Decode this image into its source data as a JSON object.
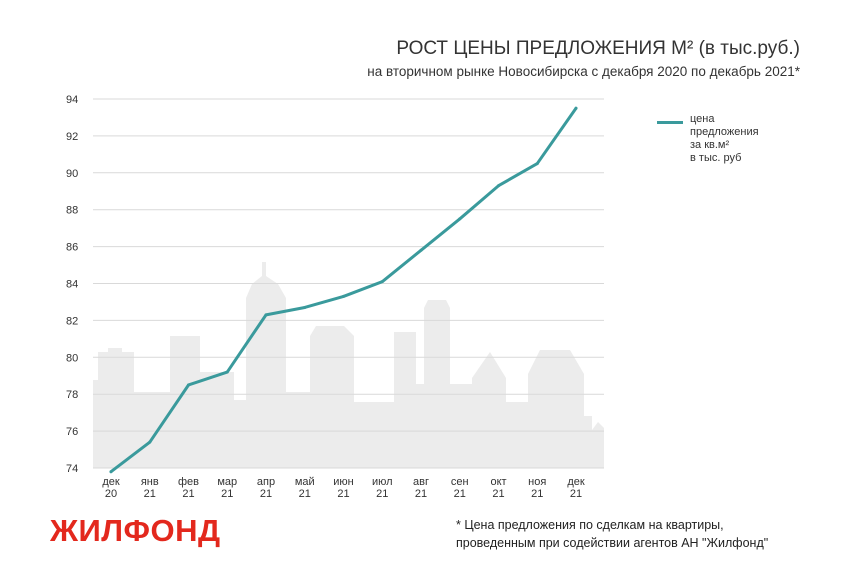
{
  "header": {
    "title": "РОСТ ЦЕНЫ ПРЕДЛОЖЕНИЯ М² (в тыс.руб.)",
    "subtitle": "на вторичном рынке Новосибирска с декабря 2020 по декабрь 2021*"
  },
  "legend": {
    "lines": [
      "цена",
      "предложения",
      "за кв.м²",
      "в тыс. руб"
    ]
  },
  "brand": {
    "logo": "ЖИЛФОНД",
    "logo_color": "#e3281d"
  },
  "footnote": {
    "line1": "* Цена предложения по сделкам на квартиры,",
    "line2": "проведенным при содействии агентов АН \"Жилфонд\""
  },
  "colors": {
    "series": "#3a9a9c",
    "grid": "#d9d9d9",
    "skyline": "#ececec"
  },
  "chart_data": {
    "type": "line",
    "title": "РОСТ ЦЕНЫ ПРЕДЛОЖЕНИЯ М² (в тыс.руб.)",
    "xlabel": "",
    "ylabel": "",
    "categories": [
      [
        "дек",
        "20"
      ],
      [
        "янв",
        "21"
      ],
      [
        "фев",
        "21"
      ],
      [
        "мар",
        "21"
      ],
      [
        "апр",
        "21"
      ],
      [
        "май",
        "21"
      ],
      [
        "июн",
        "21"
      ],
      [
        "июл",
        "21"
      ],
      [
        "авг",
        "21"
      ],
      [
        "сен",
        "21"
      ],
      [
        "окт",
        "21"
      ],
      [
        "ноя",
        "21"
      ],
      [
        "дек",
        "21"
      ]
    ],
    "series": [
      {
        "name": "цена предложения за кв.м² в тыс. руб",
        "values": [
          73.8,
          75.4,
          78.5,
          79.2,
          82.3,
          82.7,
          83.3,
          84.1,
          85.8,
          87.5,
          89.3,
          90.5,
          93.5
        ]
      }
    ],
    "yticks": [
      74,
      76,
      78,
      80,
      82,
      84,
      86,
      88,
      90,
      92,
      94
    ],
    "ylim": [
      74,
      94
    ],
    "grid": true,
    "legend_position": "top-right"
  }
}
